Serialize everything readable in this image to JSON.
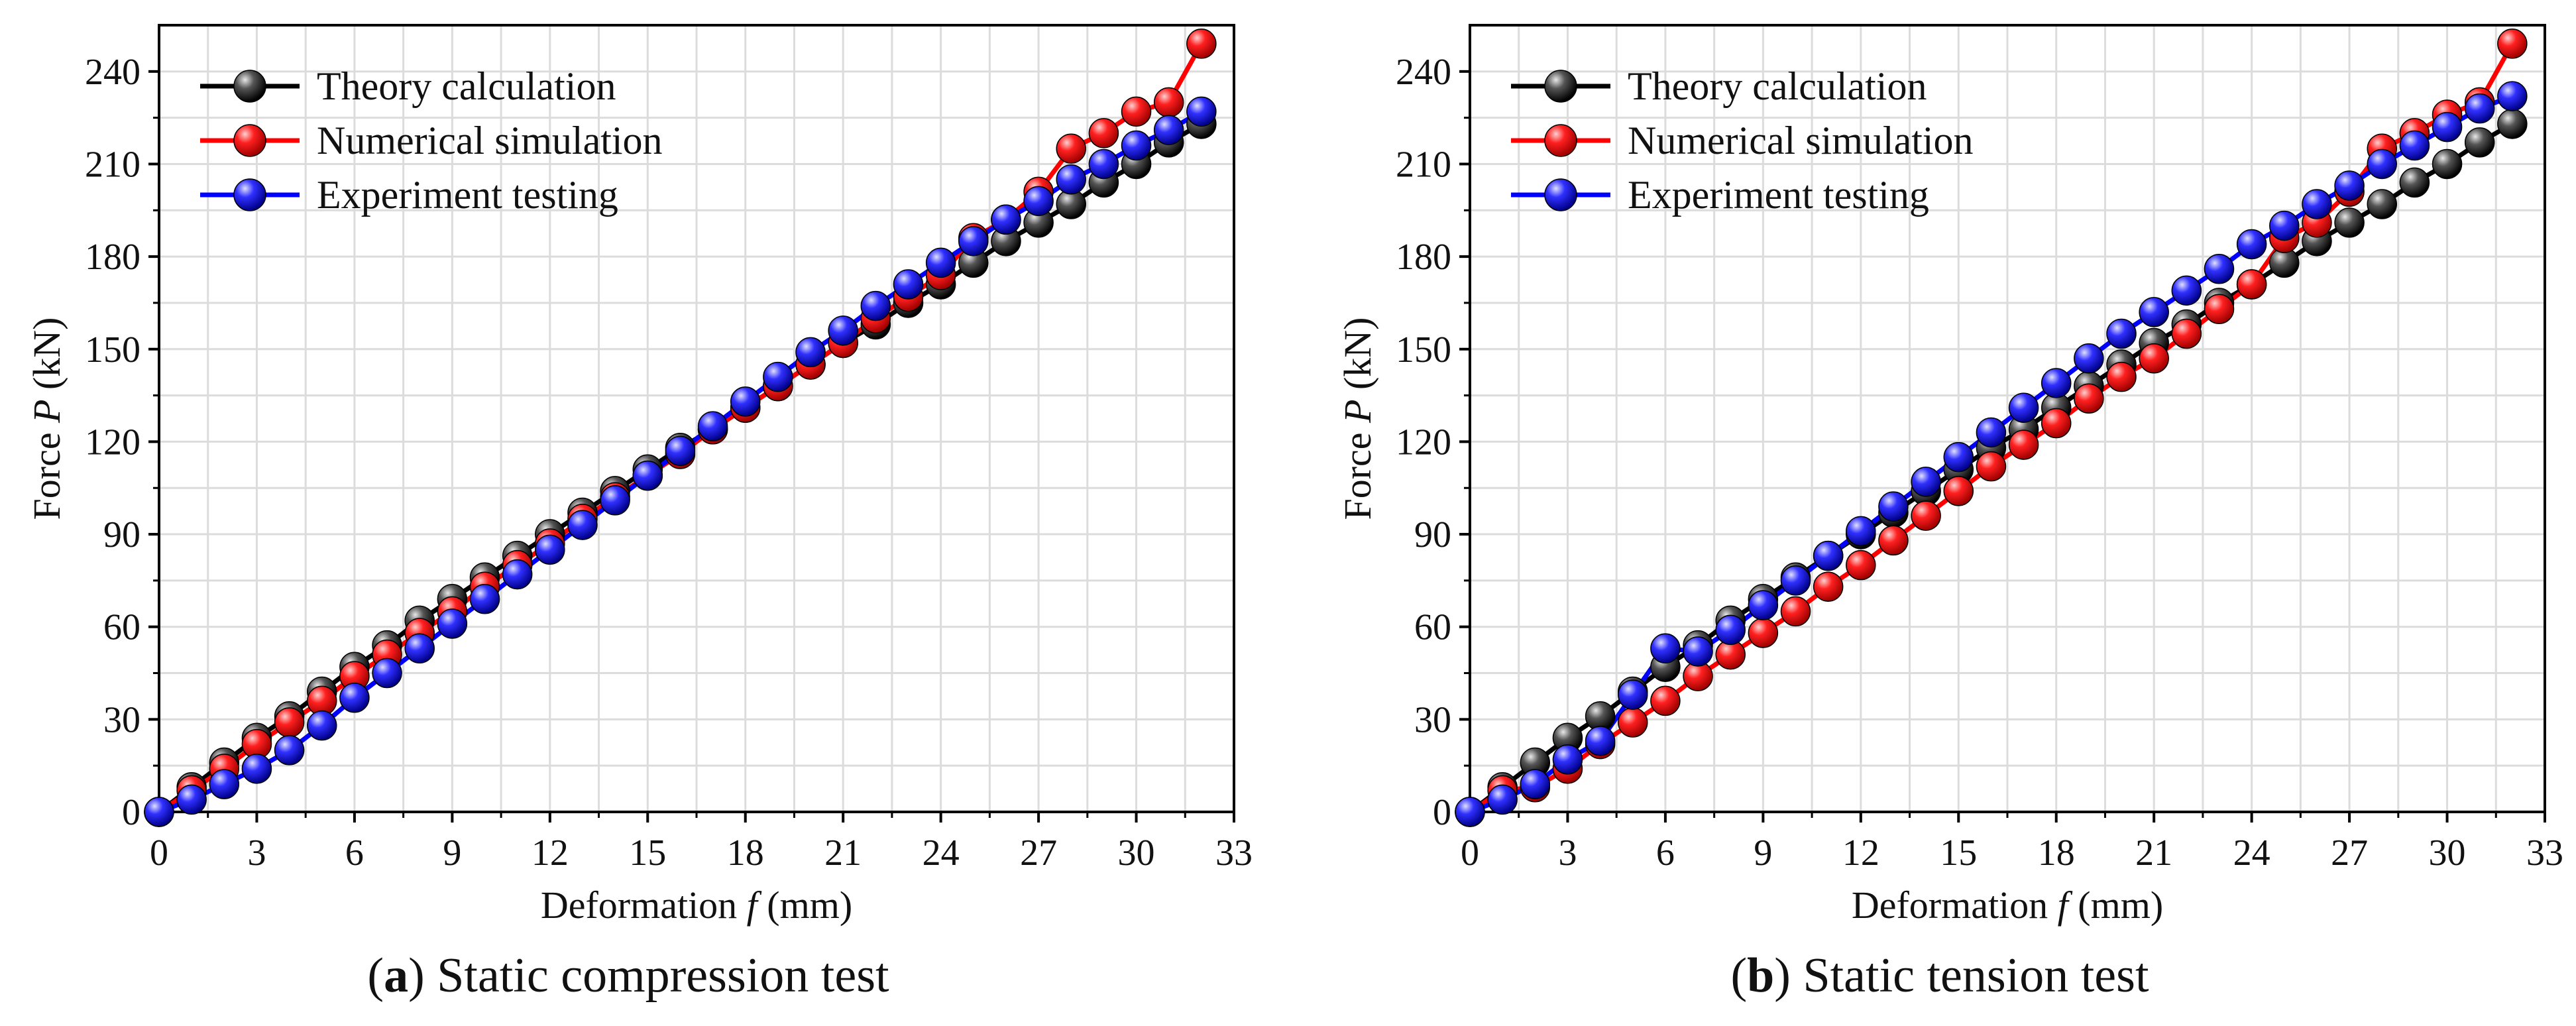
{
  "panels": [
    {
      "caption_letter": "a",
      "caption_open": "(",
      "caption_close": ")",
      "caption_text": " Static compression test"
    },
    {
      "caption_letter": "b",
      "caption_open": "(",
      "caption_close": ")",
      "caption_text": " Static tension test"
    }
  ],
  "chart_data": [
    {
      "type": "line",
      "xlabel_prefix": "Deformation ",
      "xlabel_var": "f",
      "xlabel_suffix": " (mm)",
      "ylabel_prefix": "Force ",
      "ylabel_var": "P",
      "ylabel_suffix": " (kN)",
      "xlim": [
        0,
        33
      ],
      "ylim": [
        0,
        255
      ],
      "xticks": [
        0,
        3,
        6,
        9,
        12,
        15,
        18,
        21,
        24,
        27,
        30,
        33
      ],
      "yticks": [
        0,
        30,
        60,
        90,
        120,
        150,
        180,
        210,
        240
      ],
      "grid": true,
      "legend_position": "top-left",
      "x": [
        0,
        1,
        2,
        3,
        4,
        5,
        6,
        7,
        8,
        9,
        10,
        11,
        12,
        13,
        14,
        15,
        16,
        17,
        18,
        19,
        20,
        21,
        22,
        23,
        24,
        25,
        26,
        27,
        28,
        29,
        30,
        31,
        32
      ],
      "series": [
        {
          "name": "Theory calculation",
          "color": "#000000",
          "values": [
            0,
            8,
            16,
            24,
            31,
            39,
            47,
            54,
            62,
            69,
            76,
            83,
            90,
            97,
            104,
            111,
            118,
            124,
            131,
            138,
            145,
            152,
            158,
            165,
            171,
            178,
            185,
            191,
            197,
            204,
            210,
            217,
            223
          ]
        },
        {
          "name": "Numerical simulation",
          "color": "#ff0000",
          "values": [
            0,
            7,
            14,
            22,
            29,
            36,
            44,
            51,
            58,
            65,
            73,
            80,
            87,
            95,
            102,
            109,
            116,
            124,
            131,
            138,
            145,
            152,
            160,
            167,
            174,
            186,
            192,
            201,
            215,
            220,
            227,
            230,
            249
          ]
        },
        {
          "name": "Experiment testing",
          "color": "#0000ff",
          "values": [
            0,
            4,
            9,
            14,
            20,
            28,
            37,
            45,
            53,
            61,
            69,
            77,
            85,
            93,
            101,
            109,
            117,
            125,
            133,
            141,
            149,
            156,
            164,
            171,
            178,
            185,
            192,
            198,
            205,
            210,
            216,
            221,
            227
          ]
        }
      ]
    },
    {
      "type": "line",
      "xlabel_prefix": "Deformation ",
      "xlabel_var": "f",
      "xlabel_suffix": " (mm)",
      "ylabel_prefix": "Force ",
      "ylabel_var": "P",
      "ylabel_suffix": " (kN)",
      "xlim": [
        0,
        33
      ],
      "ylim": [
        0,
        255
      ],
      "xticks": [
        0,
        3,
        6,
        9,
        12,
        15,
        18,
        21,
        24,
        27,
        30,
        33
      ],
      "yticks": [
        0,
        30,
        60,
        90,
        120,
        150,
        180,
        210,
        240
      ],
      "grid": true,
      "legend_position": "top-left",
      "x": [
        0,
        1,
        2,
        3,
        4,
        5,
        6,
        7,
        8,
        9,
        10,
        11,
        12,
        13,
        14,
        15,
        16,
        17,
        18,
        19,
        20,
        21,
        22,
        23,
        24,
        25,
        26,
        27,
        28,
        29,
        30,
        31,
        32
      ],
      "series": [
        {
          "name": "Theory calculation",
          "color": "#000000",
          "values": [
            0,
            8,
            16,
            24,
            31,
            39,
            47,
            54,
            62,
            69,
            76,
            83,
            90,
            97,
            104,
            111,
            118,
            124,
            131,
            138,
            145,
            152,
            158,
            165,
            171,
            178,
            185,
            191,
            197,
            204,
            210,
            217,
            223
          ]
        },
        {
          "name": "Numerical simulation",
          "color": "#ff0000",
          "values": [
            0,
            7,
            8,
            14,
            22,
            29,
            36,
            44,
            51,
            58,
            65,
            73,
            80,
            88,
            96,
            104,
            112,
            119,
            126,
            134,
            141,
            147,
            155,
            163,
            171,
            186,
            191,
            201,
            215,
            220,
            226,
            230,
            249
          ]
        },
        {
          "name": "Experiment testing",
          "color": "#0000ff",
          "values": [
            0,
            4,
            9,
            17,
            23,
            38,
            53,
            52,
            59,
            67,
            75,
            83,
            91,
            99,
            107,
            115,
            123,
            131,
            139,
            147,
            155,
            162,
            169,
            176,
            184,
            190,
            197,
            203,
            210,
            216,
            222,
            228,
            232
          ]
        }
      ]
    }
  ]
}
